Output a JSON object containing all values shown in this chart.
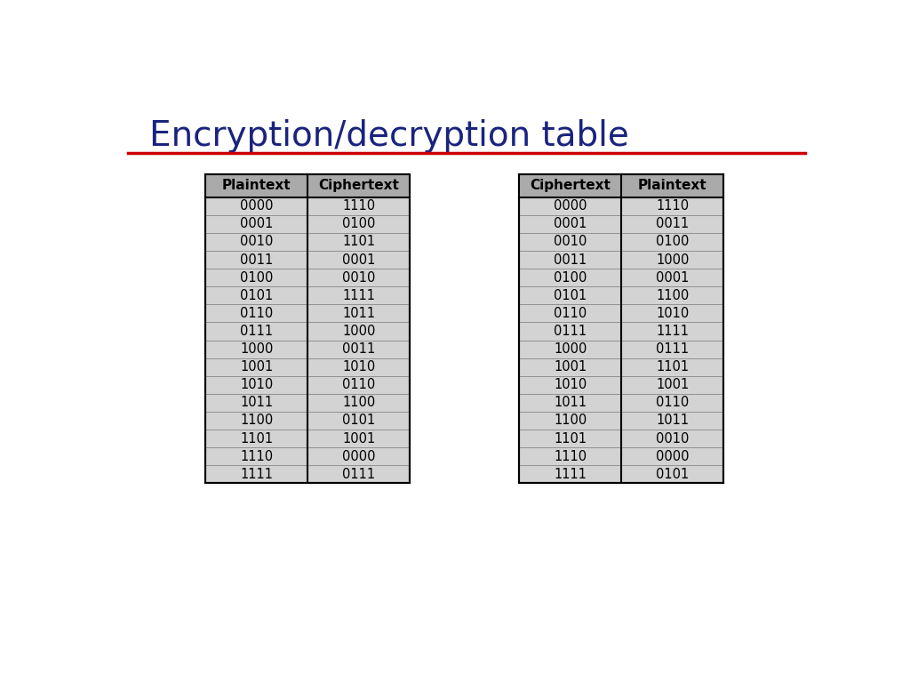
{
  "title": "Encryption/decryption table",
  "title_color": "#1a237e",
  "title_fontsize": 28,
  "line_color": "#cc0000",
  "background_color": "#ffffff",
  "table_bg": "#d3d3d3",
  "header_bg": "#aaaaaa",
  "table1_headers": [
    "Plaintext",
    "Ciphertext"
  ],
  "table1_data": [
    [
      "0000",
      "1110"
    ],
    [
      "0001",
      "0100"
    ],
    [
      "0010",
      "1101"
    ],
    [
      "0011",
      "0001"
    ],
    [
      "0100",
      "0010"
    ],
    [
      "0101",
      "1111"
    ],
    [
      "0110",
      "1011"
    ],
    [
      "0111",
      "1000"
    ],
    [
      "1000",
      "0011"
    ],
    [
      "1001",
      "1010"
    ],
    [
      "1010",
      "0110"
    ],
    [
      "1011",
      "1100"
    ],
    [
      "1100",
      "0101"
    ],
    [
      "1101",
      "1001"
    ],
    [
      "1110",
      "0000"
    ],
    [
      "1111",
      "0111"
    ]
  ],
  "table2_headers": [
    "Ciphertext",
    "Plaintext"
  ],
  "table2_data": [
    [
      "0000",
      "1110"
    ],
    [
      "0001",
      "0011"
    ],
    [
      "0010",
      "0100"
    ],
    [
      "0011",
      "1000"
    ],
    [
      "0100",
      "0001"
    ],
    [
      "0101",
      "1100"
    ],
    [
      "0110",
      "1010"
    ],
    [
      "0111",
      "1111"
    ],
    [
      "1000",
      "0111"
    ],
    [
      "1001",
      "1101"
    ],
    [
      "1010",
      "1001"
    ],
    [
      "1011",
      "0110"
    ],
    [
      "1100",
      "1011"
    ],
    [
      "1101",
      "0010"
    ],
    [
      "1110",
      "0000"
    ],
    [
      "1111",
      "0101"
    ]
  ]
}
